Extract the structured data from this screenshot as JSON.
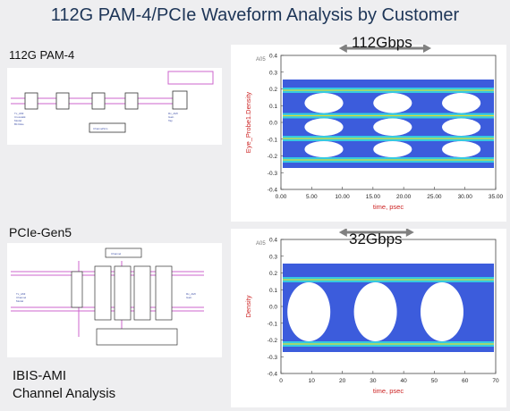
{
  "page_title": "112G PAM-4/PCIe Waveform Analysis by Customer",
  "top": {
    "label": "112G PAM-4",
    "speed": "112Gbps",
    "y_axis_label": "Eye_Probe1.Density",
    "x_axis_label": "time, psec",
    "corner_tag": "A05",
    "x_ticks": [
      "0.00",
      "5.00",
      "10.00",
      "15.00",
      "20.00",
      "25.00",
      "30.00",
      "35.00"
    ],
    "y_ticks": [
      "0.4",
      "0.3",
      "0.2",
      "0.1",
      "0.0",
      "-0.1",
      "-0.2",
      "-0.3",
      "-0.4"
    ],
    "schematic_labels": [
      "Tx_AMI",
      "Rx_AMI",
      "ChannelSim"
    ]
  },
  "bottom": {
    "label": "PCIe-Gen5",
    "speed": "32Gbps",
    "y_axis_label": "Density",
    "x_axis_label": "time, psec",
    "corner_tag": "A05",
    "x_ticks": [
      "0",
      "10",
      "20",
      "30",
      "40",
      "50",
      "60",
      "70"
    ],
    "y_ticks": [
      "0.4",
      "0.3",
      "0.2",
      "0.1",
      "0.0",
      "-0.1",
      "-0.2",
      "-0.3",
      "-0.4"
    ],
    "schematic_labels": [
      "Channel"
    ]
  },
  "footer": {
    "line1": "IBIS-AMI",
    "line2": "Channel Analysis"
  },
  "colors": {
    "title": "#1d3557",
    "axis_label": "#cc2222",
    "arrow": "#808080",
    "eye_outer": "#1a3fd6",
    "eye_inner": "#35d6e0",
    "eye_hot": "#f0e020",
    "schem_wire": "#cc66cc"
  }
}
